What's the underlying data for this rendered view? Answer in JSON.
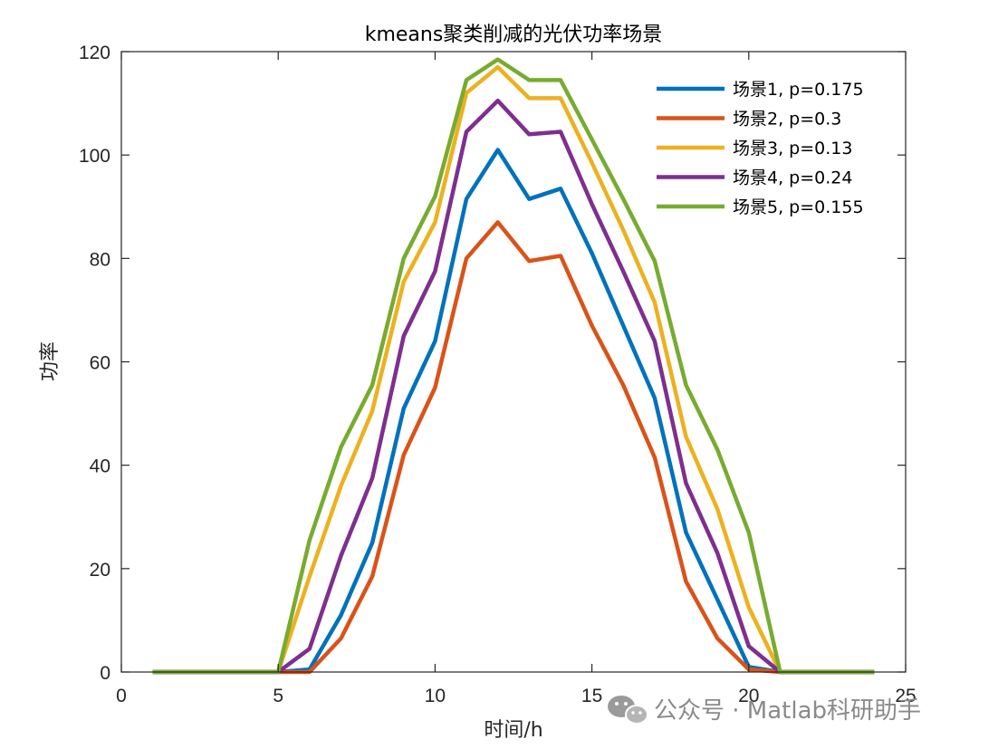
{
  "chart_data": {
    "type": "line",
    "title": "kmeans聚类削减的光伏功率场景",
    "xlabel": "时间/h",
    "ylabel": "功率",
    "xlim": [
      0,
      25
    ],
    "ylim": [
      0,
      120
    ],
    "xticks": [
      0,
      5,
      10,
      15,
      20,
      25
    ],
    "yticks": [
      0,
      20,
      40,
      60,
      80,
      100,
      120
    ],
    "grid": false,
    "legend_position": "top-right",
    "x": [
      1,
      2,
      3,
      4,
      5,
      6,
      7,
      8,
      9,
      10,
      11,
      12,
      13,
      14,
      15,
      16,
      17,
      18,
      19,
      20,
      21,
      22,
      23,
      24
    ],
    "series": [
      {
        "name": "场景1, p=0.175",
        "color": "#0072BD",
        "values": [
          0,
          0,
          0,
          0,
          0,
          0.5,
          11,
          25,
          51,
          64,
          91.5,
          101,
          91.5,
          93.5,
          81,
          67,
          53,
          27,
          14,
          1,
          0,
          0,
          0,
          0
        ]
      },
      {
        "name": "场景2, p=0.3",
        "color": "#D95319",
        "values": [
          0,
          0,
          0,
          0,
          0,
          0,
          6.5,
          18.5,
          42,
          55,
          80,
          87,
          79.5,
          80.5,
          67,
          55.5,
          41.5,
          17.5,
          6.5,
          0.5,
          0,
          0,
          0,
          0
        ]
      },
      {
        "name": "场景3, p=0.13",
        "color": "#EDB120",
        "values": [
          0,
          0,
          0,
          0,
          0,
          18.5,
          36,
          50.5,
          75.5,
          87,
          112,
          117,
          111,
          111,
          98.5,
          85.5,
          71.5,
          45.5,
          31.5,
          12.5,
          0,
          0,
          0,
          0
        ]
      },
      {
        "name": "场景4, p=0.24",
        "color": "#7E2F8E",
        "values": [
          0,
          0,
          0,
          0,
          0,
          4.5,
          22.5,
          37.5,
          65,
          77.5,
          104.5,
          110.5,
          104,
          104.5,
          90.5,
          77.5,
          64,
          36.5,
          23,
          5,
          0,
          0,
          0,
          0
        ]
      },
      {
        "name": "场景5, p=0.155",
        "color": "#77AC30",
        "values": [
          0,
          0,
          0,
          0,
          0,
          25.5,
          43.5,
          55.5,
          80,
          92,
          114.5,
          118.5,
          114.5,
          114.5,
          103,
          91.5,
          79.5,
          55.5,
          43,
          27,
          0,
          0,
          0,
          0
        ]
      }
    ]
  },
  "watermark": {
    "text": "公众号 · Matlab科研助手",
    "icon": "wechat-icon"
  }
}
